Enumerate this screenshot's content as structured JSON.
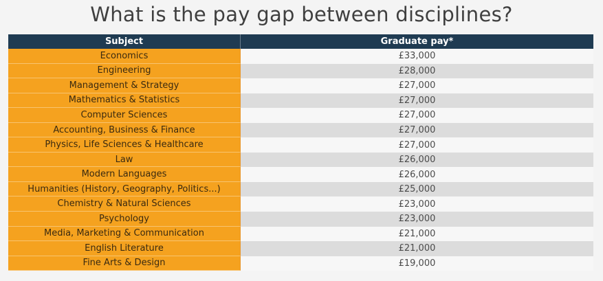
{
  "title": "What is the pay gap between disciplines?",
  "table": {
    "headers": [
      "Subject",
      "Graduate pay*"
    ],
    "rows": [
      [
        "Economics",
        "£33,000"
      ],
      [
        "Engineering",
        "£28,000"
      ],
      [
        "Management & Strategy",
        "£27,000"
      ],
      [
        "Mathematics & Statistics",
        "£27,000"
      ],
      [
        "Computer Sciences",
        "£27,000"
      ],
      [
        "Accounting, Business & Finance",
        "£27,000"
      ],
      [
        "Physics, Life Sciences & Healthcare",
        "£27,000"
      ],
      [
        "Law",
        "£26,000"
      ],
      [
        "Modern Languages",
        "£26,000"
      ],
      [
        "Humanities (History, Geography, Politics...)",
        "£25,000"
      ],
      [
        "Chemistry & Natural Sciences",
        "£23,000"
      ],
      [
        "Psychology",
        "£23,000"
      ],
      [
        "Media, Marketing & Communication",
        "£21,000"
      ],
      [
        "English Literature",
        "£21,000"
      ],
      [
        "Fine Arts & Design",
        "£19,000"
      ]
    ]
  },
  "colors": {
    "header_bg": "#1f3b52",
    "subject_bg": "#f5a21f",
    "stripe_light": "#f7f7f7",
    "stripe_dark": "#dcdcdc"
  }
}
